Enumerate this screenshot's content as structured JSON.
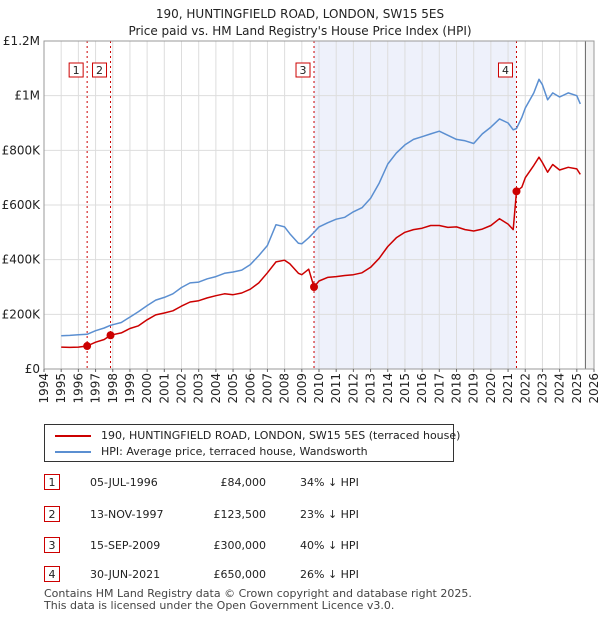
{
  "chart_data": {
    "type": "line",
    "title": "190, HUNTINGFIELD ROAD, LONDON, SW15 5ES",
    "subtitle": "Price paid vs. HM Land Registry's House Price Index (HPI)",
    "ylim": [
      0,
      1200000
    ],
    "xlim": [
      1994,
      2026
    ],
    "y_ticks": [
      {
        "value": 0,
        "label": "£0"
      },
      {
        "value": 200000,
        "label": "£200K"
      },
      {
        "value": 400000,
        "label": "£400K"
      },
      {
        "value": 600000,
        "label": "£600K"
      },
      {
        "value": 800000,
        "label": "£800K"
      },
      {
        "value": 1000000,
        "label": "£1M"
      },
      {
        "value": 1200000,
        "label": "£1.2M"
      }
    ],
    "x_ticks": [
      "1994",
      "1995",
      "1996",
      "1997",
      "1998",
      "1999",
      "2000",
      "2001",
      "2002",
      "2003",
      "2004",
      "2005",
      "2006",
      "2007",
      "2008",
      "2009",
      "2010",
      "2011",
      "2012",
      "2013",
      "2014",
      "2015",
      "2016",
      "2017",
      "2018",
      "2019",
      "2020",
      "2021",
      "2022",
      "2023",
      "2024",
      "2025",
      "2026"
    ],
    "series": [
      {
        "name": "190, HUNTINGFIELD ROAD, LONDON, SW15 5ES (terraced house)",
        "color": "#cc0000",
        "points": [
          [
            1995.0,
            80000
          ],
          [
            1995.5,
            79000
          ],
          [
            1996.0,
            80000
          ],
          [
            1996.51,
            84000
          ],
          [
            1997.0,
            98000
          ],
          [
            1997.5,
            108000
          ],
          [
            1997.87,
            123500
          ],
          [
            1998.5,
            132000
          ],
          [
            1999.0,
            148000
          ],
          [
            1999.5,
            158000
          ],
          [
            2000.0,
            180000
          ],
          [
            2000.5,
            198000
          ],
          [
            2001.0,
            205000
          ],
          [
            2001.5,
            213000
          ],
          [
            2002.0,
            230000
          ],
          [
            2002.5,
            245000
          ],
          [
            2003.0,
            250000
          ],
          [
            2003.5,
            260000
          ],
          [
            2004.0,
            268000
          ],
          [
            2004.5,
            275000
          ],
          [
            2005.0,
            272000
          ],
          [
            2005.5,
            278000
          ],
          [
            2006.0,
            292000
          ],
          [
            2006.5,
            315000
          ],
          [
            2007.0,
            352000
          ],
          [
            2007.5,
            392000
          ],
          [
            2008.0,
            398000
          ],
          [
            2008.3,
            385000
          ],
          [
            2008.8,
            350000
          ],
          [
            2009.0,
            345000
          ],
          [
            2009.4,
            365000
          ],
          [
            2009.71,
            300000
          ],
          [
            2010.0,
            322000
          ],
          [
            2010.5,
            335000
          ],
          [
            2011.0,
            338000
          ],
          [
            2011.5,
            342000
          ],
          [
            2012.0,
            345000
          ],
          [
            2012.5,
            352000
          ],
          [
            2013.0,
            372000
          ],
          [
            2013.5,
            405000
          ],
          [
            2014.0,
            448000
          ],
          [
            2014.5,
            480000
          ],
          [
            2015.0,
            500000
          ],
          [
            2015.5,
            510000
          ],
          [
            2016.0,
            515000
          ],
          [
            2016.5,
            525000
          ],
          [
            2017.0,
            525000
          ],
          [
            2017.5,
            518000
          ],
          [
            2018.0,
            520000
          ],
          [
            2018.5,
            510000
          ],
          [
            2019.0,
            505000
          ],
          [
            2019.5,
            512000
          ],
          [
            2020.0,
            525000
          ],
          [
            2020.5,
            550000
          ],
          [
            2021.0,
            530000
          ],
          [
            2021.3,
            510000
          ],
          [
            2021.49,
            650000
          ],
          [
            2021.8,
            665000
          ],
          [
            2022.0,
            700000
          ],
          [
            2022.5,
            745000
          ],
          [
            2022.8,
            775000
          ],
          [
            2023.0,
            755000
          ],
          [
            2023.3,
            720000
          ],
          [
            2023.6,
            748000
          ],
          [
            2024.0,
            728000
          ],
          [
            2024.5,
            738000
          ],
          [
            2025.0,
            732000
          ],
          [
            2025.2,
            712000
          ]
        ]
      },
      {
        "name": "HPI: Average price, terraced house, Wandsworth",
        "color": "#5b8fd1",
        "points": [
          [
            1995.0,
            122000
          ],
          [
            1995.5,
            123000
          ],
          [
            1996.0,
            125000
          ],
          [
            1996.51,
            127000
          ],
          [
            1997.0,
            140000
          ],
          [
            1997.5,
            150000
          ],
          [
            1997.87,
            160000
          ],
          [
            1998.5,
            170000
          ],
          [
            1999.0,
            190000
          ],
          [
            1999.5,
            210000
          ],
          [
            2000.0,
            232000
          ],
          [
            2000.5,
            252000
          ],
          [
            2001.0,
            262000
          ],
          [
            2001.5,
            275000
          ],
          [
            2002.0,
            298000
          ],
          [
            2002.5,
            315000
          ],
          [
            2003.0,
            318000
          ],
          [
            2003.5,
            330000
          ],
          [
            2004.0,
            338000
          ],
          [
            2004.5,
            350000
          ],
          [
            2005.0,
            355000
          ],
          [
            2005.5,
            362000
          ],
          [
            2006.0,
            382000
          ],
          [
            2006.5,
            415000
          ],
          [
            2007.0,
            452000
          ],
          [
            2007.5,
            528000
          ],
          [
            2008.0,
            520000
          ],
          [
            2008.3,
            495000
          ],
          [
            2008.8,
            460000
          ],
          [
            2009.0,
            458000
          ],
          [
            2009.4,
            480000
          ],
          [
            2009.71,
            500000
          ],
          [
            2010.0,
            520000
          ],
          [
            2010.5,
            535000
          ],
          [
            2011.0,
            548000
          ],
          [
            2011.5,
            555000
          ],
          [
            2012.0,
            575000
          ],
          [
            2012.5,
            590000
          ],
          [
            2013.0,
            625000
          ],
          [
            2013.5,
            680000
          ],
          [
            2014.0,
            750000
          ],
          [
            2014.5,
            790000
          ],
          [
            2015.0,
            820000
          ],
          [
            2015.5,
            840000
          ],
          [
            2016.0,
            850000
          ],
          [
            2016.5,
            860000
          ],
          [
            2017.0,
            870000
          ],
          [
            2017.5,
            855000
          ],
          [
            2018.0,
            840000
          ],
          [
            2018.5,
            835000
          ],
          [
            2019.0,
            825000
          ],
          [
            2019.5,
            860000
          ],
          [
            2020.0,
            885000
          ],
          [
            2020.5,
            915000
          ],
          [
            2021.0,
            900000
          ],
          [
            2021.3,
            875000
          ],
          [
            2021.49,
            880000
          ],
          [
            2021.8,
            920000
          ],
          [
            2022.0,
            955000
          ],
          [
            2022.5,
            1010000
          ],
          [
            2022.8,
            1060000
          ],
          [
            2023.0,
            1040000
          ],
          [
            2023.3,
            985000
          ],
          [
            2023.6,
            1010000
          ],
          [
            2024.0,
            995000
          ],
          [
            2024.5,
            1010000
          ],
          [
            2025.0,
            1000000
          ],
          [
            2025.2,
            970000
          ]
        ]
      }
    ],
    "sales": [
      {
        "num": "1",
        "date": "05-JUL-1996",
        "x": 1996.51,
        "value": 84000,
        "price": "£84,000",
        "delta": "34% ↓ HPI"
      },
      {
        "num": "2",
        "date": "13-NOV-1997",
        "x": 1997.87,
        "value": 123500,
        "price": "£123,500",
        "delta": "23% ↓ HPI"
      },
      {
        "num": "3",
        "date": "15-SEP-2009",
        "x": 2009.71,
        "value": 300000,
        "price": "£300,000",
        "delta": "40% ↓ HPI"
      },
      {
        "num": "4",
        "date": "30-JUN-2021",
        "x": 2021.49,
        "value": 650000,
        "price": "£650,000",
        "delta": "26% ↓ HPI"
      }
    ],
    "highlight_range": [
      2009.71,
      2021.49
    ],
    "future_start": 2025.5,
    "colors": {
      "property": "#cc0000",
      "hpi": "#5b8fd1",
      "shade": "#eef1fb",
      "grid": "#dddddd",
      "marker": "#cc0000"
    }
  },
  "legend": {
    "property_label": "190, HUNTINGFIELD ROAD, LONDON, SW15 5ES (terraced house)",
    "hpi_label": "HPI: Average price, terraced house, Wandsworth"
  },
  "footer": {
    "line1": "Contains HM Land Registry data © Crown copyright and database right 2025.",
    "line2": "This data is licensed under the Open Government Licence v3.0."
  }
}
